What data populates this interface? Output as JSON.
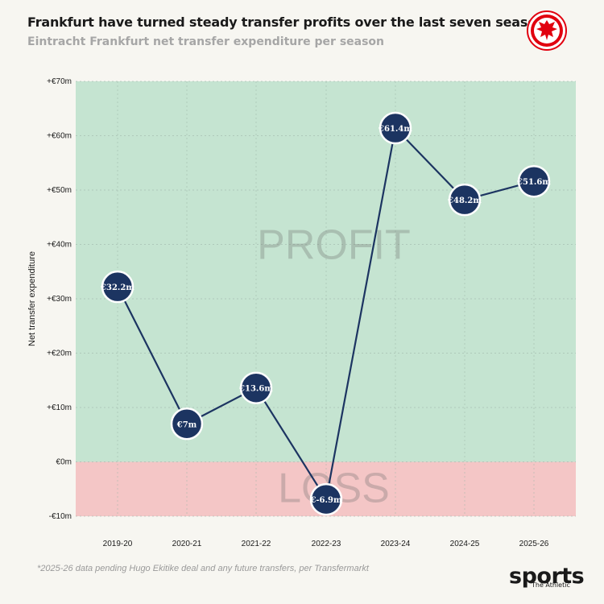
{
  "header": {
    "title": "Frankfurt have turned steady transfer profits over the last seven seasons",
    "subtitle": "Eintracht Frankfurt net transfer expenditure per season"
  },
  "footer": {
    "footnote": "*2025-26 data pending Hugo Ekitike deal and any future transfers, per Transfermarkt",
    "brand": "sports",
    "brand_sub": "The Athletic"
  },
  "colors": {
    "profit_zone": "#c5e4d1",
    "loss_zone": "#f4c6c6",
    "line": "#1c3461",
    "marker": "#1c3461",
    "marker_border": "#ffffff",
    "logo_red": "#e1000f"
  },
  "chart_data": {
    "type": "line",
    "categories": [
      "2019-20",
      "2020-21",
      "2021-22",
      "2022-23",
      "2023-24",
      "2024-25",
      "2025-26"
    ],
    "values": [
      32.2,
      7,
      13.6,
      -6.9,
      61.4,
      48.2,
      51.6
    ],
    "data_labels": [
      "€32.2m",
      "€7m",
      "€13.6m",
      "€-6.9m",
      "€61.4m",
      "€48.2m",
      "€51.6m"
    ],
    "ylabel": "Net transfer expenditure",
    "xlabel": "",
    "ylim": [
      -10,
      70
    ],
    "yticks": [
      -10,
      0,
      10,
      20,
      30,
      40,
      50,
      60,
      70
    ],
    "ytick_labels": [
      "-€10m",
      "€0m",
      "+€10m",
      "+€20m",
      "+€30m",
      "+€40m",
      "+€50m",
      "+€60m",
      "+€70m"
    ],
    "zones": [
      {
        "label": "PROFIT",
        "from": 0,
        "to": 70
      },
      {
        "label": "LOSS",
        "from": -10,
        "to": 0
      }
    ],
    "grid": true
  }
}
